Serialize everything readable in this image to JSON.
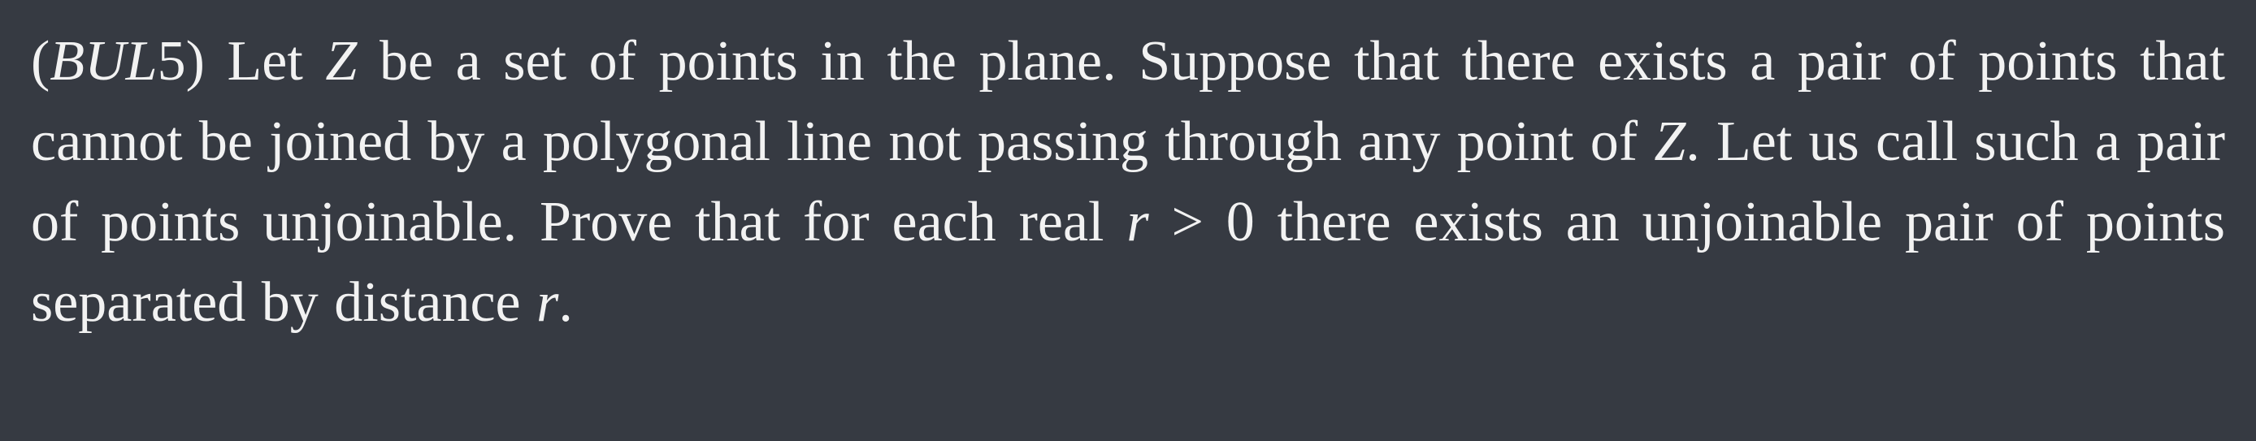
{
  "problem": {
    "label_open": "(",
    "label_var": "BUL",
    "label_num": "5",
    "label_close": ")",
    "t1": " Let ",
    "var_z1": "Z",
    "t2": " be a set of points in the plane. Suppose that there exists a pair of points that cannot be joined by a polygonal line not passing through any point of ",
    "var_z2": "Z",
    "t3": ". Let us call such a pair of points unjoinable. Prove that for each real ",
    "var_r1": "r",
    "gt": " > ",
    "zero": "0",
    "t4": " there exists an unjoinable pair of points separated by distance ",
    "var_r2": "r",
    "end": "."
  }
}
